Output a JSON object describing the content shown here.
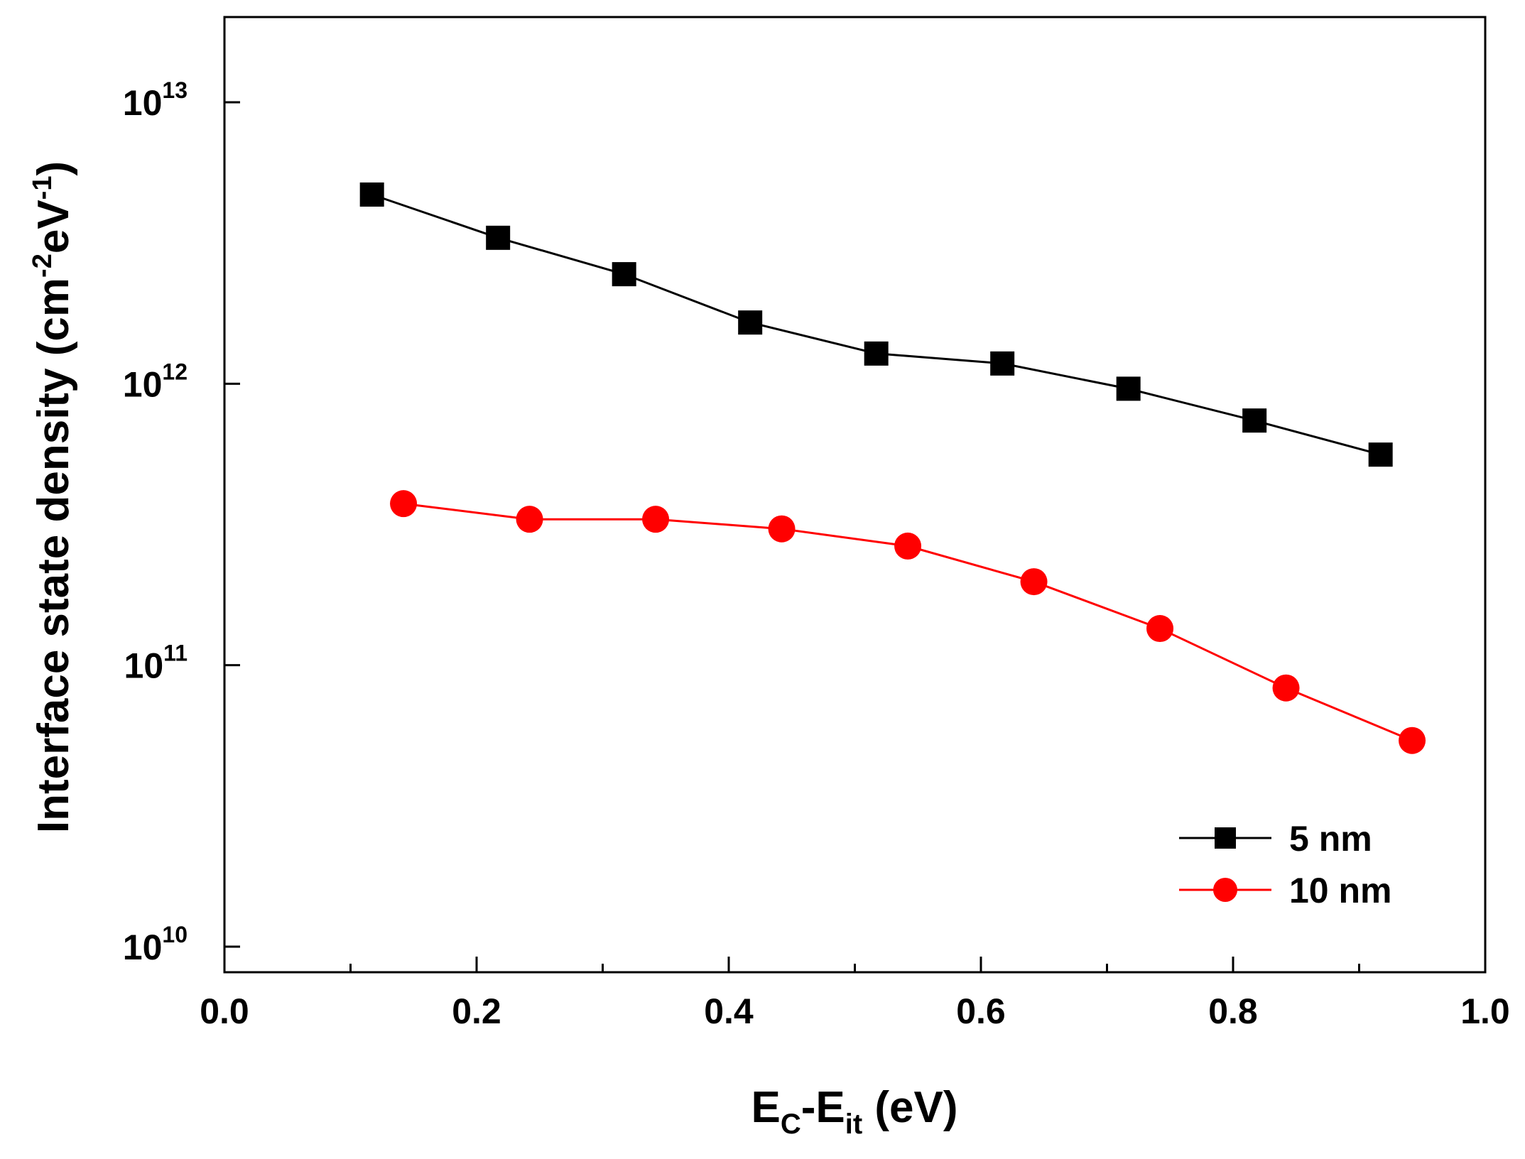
{
  "chart_data": {
    "type": "line",
    "yscale": "log",
    "xlim": [
      0.0,
      1.0
    ],
    "ylim_log10": [
      9.9,
      13.3
    ],
    "x_ticks": [
      {
        "value": 0.0,
        "label": "0.0"
      },
      {
        "value": 0.2,
        "label": "0.2"
      },
      {
        "value": 0.4,
        "label": "0.4"
      },
      {
        "value": 0.6,
        "label": "0.6"
      },
      {
        "value": 0.8,
        "label": "0.8"
      },
      {
        "value": 1.0,
        "label": "1.0"
      }
    ],
    "x_minor_ticks": [
      0.1,
      0.3,
      0.5,
      0.7,
      0.9
    ],
    "y_ticks": [
      {
        "exponent": 10,
        "base": "10",
        "sup": "10"
      },
      {
        "exponent": 11,
        "base": "10",
        "sup": "11"
      },
      {
        "exponent": 12,
        "base": "10",
        "sup": "12"
      },
      {
        "exponent": 13,
        "base": "10",
        "sup": "13"
      }
    ],
    "xlabel": {
      "main1": "E",
      "sub1": "C",
      "main2": "-E",
      "sub2": "it",
      "main3": " (eV)"
    },
    "ylabel": {
      "main": "Interface state density (cm",
      "sup1": "-2",
      "mid": "eV",
      "sup2": "-1",
      "end": ")"
    },
    "series": [
      {
        "name": "5 nm",
        "color": "#000000",
        "marker": "square",
        "x": [
          0.117,
          0.217,
          0.317,
          0.417,
          0.517,
          0.617,
          0.717,
          0.817,
          0.917
        ],
        "y": [
          4700000000000.0,
          3300000000000.0,
          2450000000000.0,
          1650000000000.0,
          1280000000000.0,
          1180000000000.0,
          960000000000.0,
          740000000000.0,
          560000000000.0
        ]
      },
      {
        "name": "10 nm",
        "color": "#ff0000",
        "marker": "circle",
        "x": [
          0.142,
          0.242,
          0.342,
          0.442,
          0.542,
          0.642,
          0.742,
          0.842,
          0.942
        ],
        "y": [
          375000000000.0,
          330000000000.0,
          330000000000.0,
          305000000000.0,
          265000000000.0,
          198000000000.0,
          135000000000.0,
          83000000000.0,
          54000000000.0
        ]
      }
    ],
    "legend": {
      "placement": "bottom-right"
    }
  }
}
